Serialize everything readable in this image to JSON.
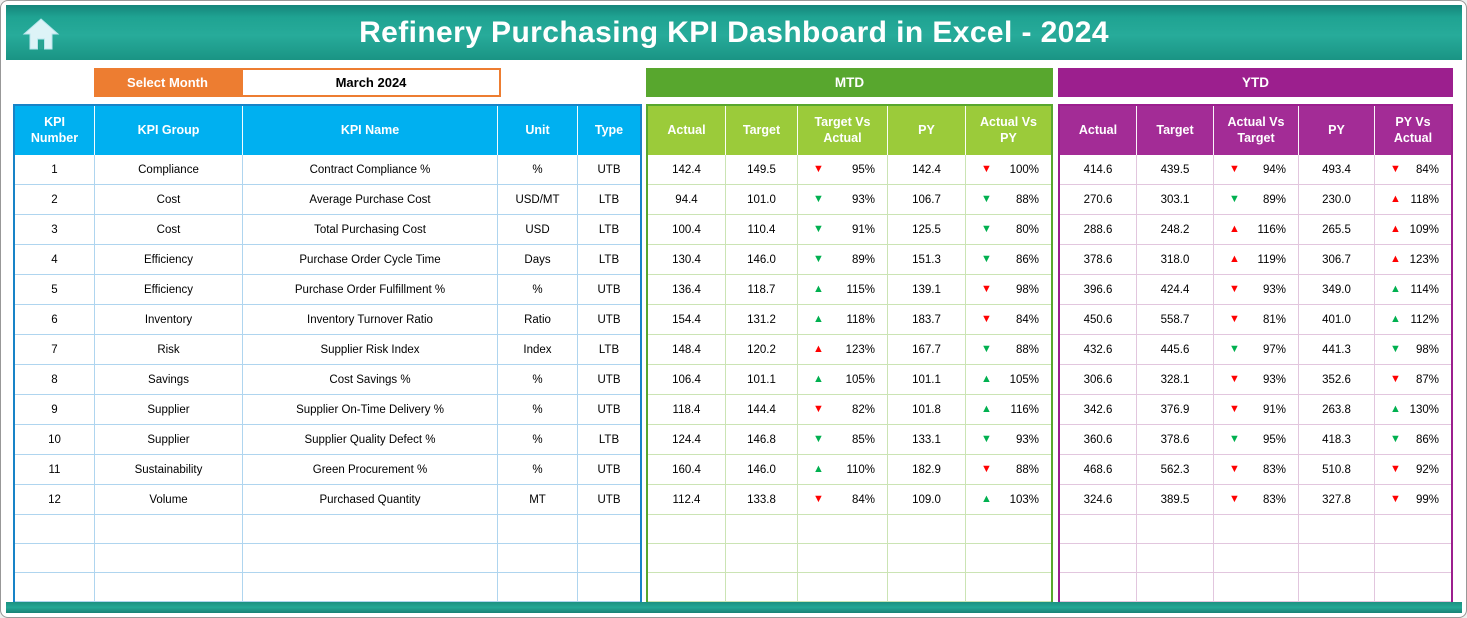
{
  "colors": {
    "red": "#FF0000",
    "green": "#00B050",
    "teal": "#1E9E8A",
    "orange": "#ED7D31",
    "blue_header": "#00B0F0",
    "green_banner": "#58A72E",
    "green_header": "#9BCB3A",
    "purple": "#9C1F8E"
  },
  "header": {
    "title": "Refinery Purchasing KPI Dashboard in Excel - 2024",
    "home_icon": "home-icon"
  },
  "month_selector": {
    "label": "Select Month",
    "value": "March 2024"
  },
  "kpi_table": {
    "headers": [
      "KPI Number",
      "KPI Group",
      "KPI Name",
      "Unit",
      "Type"
    ],
    "rows": [
      {
        "number": "1",
        "group": "Compliance",
        "name": "Contract Compliance %",
        "unit": "%",
        "type": "UTB"
      },
      {
        "number": "2",
        "group": "Cost",
        "name": "Average Purchase Cost",
        "unit": "USD/MT",
        "type": "LTB"
      },
      {
        "number": "3",
        "group": "Cost",
        "name": "Total Purchasing Cost",
        "unit": "USD",
        "type": "LTB"
      },
      {
        "number": "4",
        "group": "Efficiency",
        "name": "Purchase Order Cycle Time",
        "unit": "Days",
        "type": "LTB"
      },
      {
        "number": "5",
        "group": "Efficiency",
        "name": "Purchase Order Fulfillment %",
        "unit": "%",
        "type": "UTB"
      },
      {
        "number": "6",
        "group": "Inventory",
        "name": "Inventory Turnover Ratio",
        "unit": "Ratio",
        "type": "UTB"
      },
      {
        "number": "7",
        "group": "Risk",
        "name": "Supplier Risk Index",
        "unit": "Index",
        "type": "LTB"
      },
      {
        "number": "8",
        "group": "Savings",
        "name": "Cost Savings %",
        "unit": "%",
        "type": "UTB"
      },
      {
        "number": "9",
        "group": "Supplier",
        "name": "Supplier On-Time Delivery %",
        "unit": "%",
        "type": "UTB"
      },
      {
        "number": "10",
        "group": "Supplier",
        "name": "Supplier Quality Defect %",
        "unit": "%",
        "type": "LTB"
      },
      {
        "number": "11",
        "group": "Sustainability",
        "name": "Green Procurement %",
        "unit": "%",
        "type": "UTB"
      },
      {
        "number": "12",
        "group": "Volume",
        "name": "Purchased Quantity",
        "unit": "MT",
        "type": "UTB"
      }
    ]
  },
  "mtd": {
    "title": "MTD",
    "headers": [
      "Actual",
      "Target",
      "Target Vs Actual",
      "PY",
      "Actual Vs PY"
    ],
    "rows": [
      {
        "actual": "142.4",
        "target": "149.5",
        "target_vs_actual": {
          "arrow": "▼",
          "color": "red",
          "value": "95%"
        },
        "py": "142.4",
        "actual_vs_py": {
          "arrow": "▼",
          "color": "red",
          "value": "100%"
        }
      },
      {
        "actual": "94.4",
        "target": "101.0",
        "target_vs_actual": {
          "arrow": "▼",
          "color": "green",
          "value": "93%"
        },
        "py": "106.7",
        "actual_vs_py": {
          "arrow": "▼",
          "color": "green",
          "value": "88%"
        }
      },
      {
        "actual": "100.4",
        "target": "110.4",
        "target_vs_actual": {
          "arrow": "▼",
          "color": "green",
          "value": "91%"
        },
        "py": "125.5",
        "actual_vs_py": {
          "arrow": "▼",
          "color": "green",
          "value": "80%"
        }
      },
      {
        "actual": "130.4",
        "target": "146.0",
        "target_vs_actual": {
          "arrow": "▼",
          "color": "green",
          "value": "89%"
        },
        "py": "151.3",
        "actual_vs_py": {
          "arrow": "▼",
          "color": "green",
          "value": "86%"
        }
      },
      {
        "actual": "136.4",
        "target": "118.7",
        "target_vs_actual": {
          "arrow": "▲",
          "color": "green",
          "value": "115%"
        },
        "py": "139.1",
        "actual_vs_py": {
          "arrow": "▼",
          "color": "red",
          "value": "98%"
        }
      },
      {
        "actual": "154.4",
        "target": "131.2",
        "target_vs_actual": {
          "arrow": "▲",
          "color": "green",
          "value": "118%"
        },
        "py": "183.7",
        "actual_vs_py": {
          "arrow": "▼",
          "color": "red",
          "value": "84%"
        }
      },
      {
        "actual": "148.4",
        "target": "120.2",
        "target_vs_actual": {
          "arrow": "▲",
          "color": "red",
          "value": "123%"
        },
        "py": "167.7",
        "actual_vs_py": {
          "arrow": "▼",
          "color": "green",
          "value": "88%"
        }
      },
      {
        "actual": "106.4",
        "target": "101.1",
        "target_vs_actual": {
          "arrow": "▲",
          "color": "green",
          "value": "105%"
        },
        "py": "101.1",
        "actual_vs_py": {
          "arrow": "▲",
          "color": "green",
          "value": "105%"
        }
      },
      {
        "actual": "118.4",
        "target": "144.4",
        "target_vs_actual": {
          "arrow": "▼",
          "color": "red",
          "value": "82%"
        },
        "py": "101.8",
        "actual_vs_py": {
          "arrow": "▲",
          "color": "green",
          "value": "116%"
        }
      },
      {
        "actual": "124.4",
        "target": "146.8",
        "target_vs_actual": {
          "arrow": "▼",
          "color": "green",
          "value": "85%"
        },
        "py": "133.1",
        "actual_vs_py": {
          "arrow": "▼",
          "color": "green",
          "value": "93%"
        }
      },
      {
        "actual": "160.4",
        "target": "146.0",
        "target_vs_actual": {
          "arrow": "▲",
          "color": "green",
          "value": "110%"
        },
        "py": "182.9",
        "actual_vs_py": {
          "arrow": "▼",
          "color": "red",
          "value": "88%"
        }
      },
      {
        "actual": "112.4",
        "target": "133.8",
        "target_vs_actual": {
          "arrow": "▼",
          "color": "red",
          "value": "84%"
        },
        "py": "109.0",
        "actual_vs_py": {
          "arrow": "▲",
          "color": "green",
          "value": "103%"
        }
      }
    ]
  },
  "ytd": {
    "title": "YTD",
    "headers": [
      "Actual",
      "Target",
      "Actual Vs Target",
      "PY",
      "PY Vs Actual"
    ],
    "rows": [
      {
        "actual": "414.6",
        "target": "439.5",
        "actual_vs_target": {
          "arrow": "▼",
          "color": "red",
          "value": "94%"
        },
        "py": "493.4",
        "py_vs_actual": {
          "arrow": "▼",
          "color": "red",
          "value": "84%"
        }
      },
      {
        "actual": "270.6",
        "target": "303.1",
        "actual_vs_target": {
          "arrow": "▼",
          "color": "green",
          "value": "89%"
        },
        "py": "230.0",
        "py_vs_actual": {
          "arrow": "▲",
          "color": "red",
          "value": "118%"
        }
      },
      {
        "actual": "288.6",
        "target": "248.2",
        "actual_vs_target": {
          "arrow": "▲",
          "color": "red",
          "value": "116%"
        },
        "py": "265.5",
        "py_vs_actual": {
          "arrow": "▲",
          "color": "red",
          "value": "109%"
        }
      },
      {
        "actual": "378.6",
        "target": "318.0",
        "actual_vs_target": {
          "arrow": "▲",
          "color": "red",
          "value": "119%"
        },
        "py": "306.7",
        "py_vs_actual": {
          "arrow": "▲",
          "color": "red",
          "value": "123%"
        }
      },
      {
        "actual": "396.6",
        "target": "424.4",
        "actual_vs_target": {
          "arrow": "▼",
          "color": "red",
          "value": "93%"
        },
        "py": "349.0",
        "py_vs_actual": {
          "arrow": "▲",
          "color": "green",
          "value": "114%"
        }
      },
      {
        "actual": "450.6",
        "target": "558.7",
        "actual_vs_target": {
          "arrow": "▼",
          "color": "red",
          "value": "81%"
        },
        "py": "401.0",
        "py_vs_actual": {
          "arrow": "▲",
          "color": "green",
          "value": "112%"
        }
      },
      {
        "actual": "432.6",
        "target": "445.6",
        "actual_vs_target": {
          "arrow": "▼",
          "color": "green",
          "value": "97%"
        },
        "py": "441.3",
        "py_vs_actual": {
          "arrow": "▼",
          "color": "green",
          "value": "98%"
        }
      },
      {
        "actual": "306.6",
        "target": "328.1",
        "actual_vs_target": {
          "arrow": "▼",
          "color": "red",
          "value": "93%"
        },
        "py": "352.6",
        "py_vs_actual": {
          "arrow": "▼",
          "color": "red",
          "value": "87%"
        }
      },
      {
        "actual": "342.6",
        "target": "376.9",
        "actual_vs_target": {
          "arrow": "▼",
          "color": "red",
          "value": "91%"
        },
        "py": "263.8",
        "py_vs_actual": {
          "arrow": "▲",
          "color": "green",
          "value": "130%"
        }
      },
      {
        "actual": "360.6",
        "target": "378.6",
        "actual_vs_target": {
          "arrow": "▼",
          "color": "green",
          "value": "95%"
        },
        "py": "418.3",
        "py_vs_actual": {
          "arrow": "▼",
          "color": "green",
          "value": "86%"
        }
      },
      {
        "actual": "468.6",
        "target": "562.3",
        "actual_vs_target": {
          "arrow": "▼",
          "color": "red",
          "value": "83%"
        },
        "py": "510.8",
        "py_vs_actual": {
          "arrow": "▼",
          "color": "red",
          "value": "92%"
        }
      },
      {
        "actual": "324.6",
        "target": "389.5",
        "actual_vs_target": {
          "arrow": "▼",
          "color": "red",
          "value": "83%"
        },
        "py": "327.8",
        "py_vs_actual": {
          "arrow": "▼",
          "color": "red",
          "value": "99%"
        }
      }
    ]
  }
}
